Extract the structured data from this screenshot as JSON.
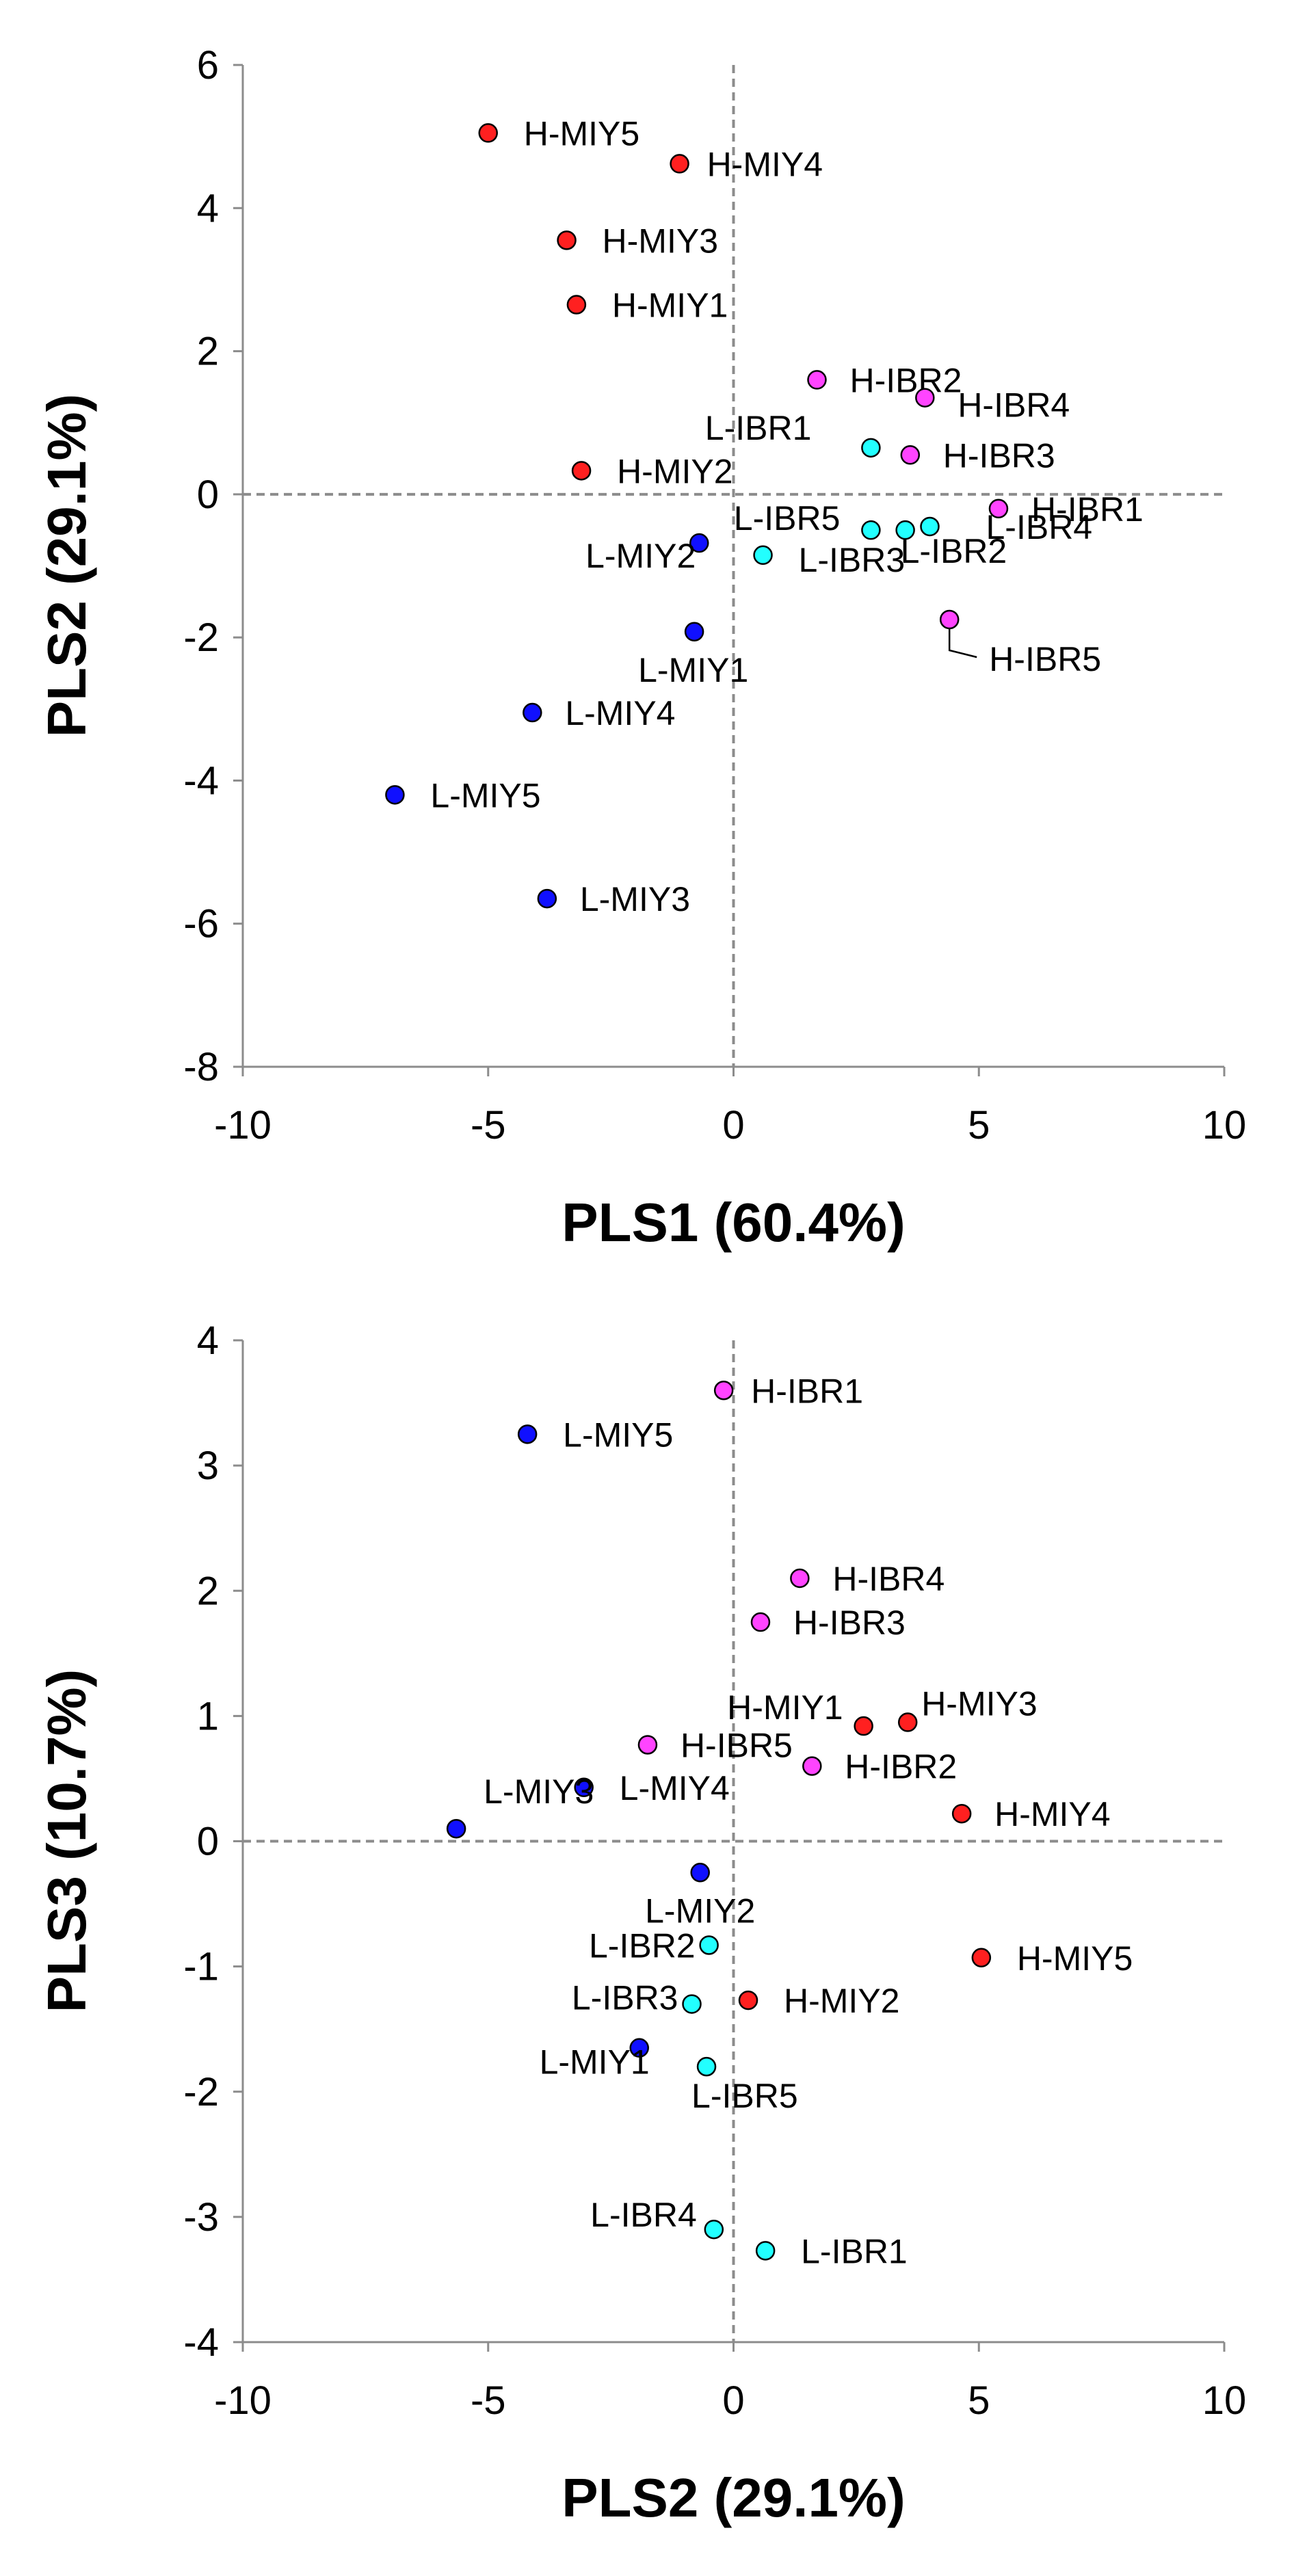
{
  "chart_data": [
    {
      "type": "scatter",
      "xlabel": "PLS1 (60.4%)",
      "ylabel": "PLS2 (29.1%)",
      "xlim": [
        -10,
        10
      ],
      "ylim": [
        -8,
        6
      ],
      "xticks": [
        "-10",
        "-5",
        "0",
        "5",
        "10"
      ],
      "yticks": [
        "-8",
        "-6",
        "-4",
        "-2",
        "0",
        "2",
        "4",
        "6"
      ],
      "grid": false,
      "legend": "none",
      "zero_lines": "dashed",
      "points": [
        {
          "label": "H-MIY5",
          "x": -5.0,
          "y": 5.05,
          "color": "#ff2020"
        },
        {
          "label": "H-MIY4",
          "x": -1.1,
          "y": 4.62,
          "color": "#ff2020"
        },
        {
          "label": "H-MIY3",
          "x": -3.4,
          "y": 3.55,
          "color": "#ff2020"
        },
        {
          "label": "H-MIY1",
          "x": -3.2,
          "y": 2.65,
          "color": "#ff2020"
        },
        {
          "label": "H-MIY2",
          "x": -3.1,
          "y": 0.33,
          "color": "#ff2020"
        },
        {
          "label": "H-IBR2",
          "x": 1.7,
          "y": 1.6,
          "color": "#ff44ff"
        },
        {
          "label": "H-IBR4",
          "x": 3.9,
          "y": 1.35,
          "color": "#ff44ff"
        },
        {
          "label": "H-IBR3",
          "x": 3.6,
          "y": 0.55,
          "color": "#ff44ff"
        },
        {
          "label": "H-IBR1",
          "x": 5.4,
          "y": -0.2,
          "color": "#ff44ff"
        },
        {
          "label": "H-IBR5",
          "x": 4.4,
          "y": -1.75,
          "color": "#ff44ff"
        },
        {
          "label": "L-IBR1",
          "x": 2.8,
          "y": 0.65,
          "color": "#22ffff"
        },
        {
          "label": "L-IBR5",
          "x": 2.8,
          "y": -0.5,
          "color": "#22ffff"
        },
        {
          "label": "L-IBR2",
          "x": 3.5,
          "y": -0.5,
          "color": "#22ffff"
        },
        {
          "label": "L-IBR4",
          "x": 4.0,
          "y": -0.45,
          "color": "#22ffff"
        },
        {
          "label": "L-IBR3",
          "x": 0.6,
          "y": -0.85,
          "color": "#22ffff"
        },
        {
          "label": "L-MIY2",
          "x": -0.7,
          "y": -0.68,
          "color": "#1010ff"
        },
        {
          "label": "L-MIY1",
          "x": -0.8,
          "y": -1.92,
          "color": "#1010ff"
        },
        {
          "label": "L-MIY4",
          "x": -4.1,
          "y": -3.05,
          "color": "#1010ff"
        },
        {
          "label": "L-MIY5",
          "x": -6.9,
          "y": -4.2,
          "color": "#1010ff"
        },
        {
          "label": "L-MIY3",
          "x": -3.8,
          "y": -5.65,
          "color": "#1010ff"
        }
      ]
    },
    {
      "type": "scatter",
      "xlabel": "PLS2 (29.1%)",
      "ylabel": "PLS3 (10.7%)",
      "xlim": [
        -10,
        10
      ],
      "ylim": [
        -4,
        4
      ],
      "xticks": [
        "-10",
        "-5",
        "0",
        "5",
        "10"
      ],
      "yticks": [
        "-4",
        "-3",
        "-2",
        "-1",
        "0",
        "1",
        "2",
        "3",
        "4"
      ],
      "grid": false,
      "legend": "none",
      "zero_lines": "dashed",
      "points": [
        {
          "label": "H-IBR1",
          "x": -0.2,
          "y": 3.6,
          "color": "#ff44ff"
        },
        {
          "label": "H-IBR4",
          "x": 1.35,
          "y": 2.1,
          "color": "#ff44ff"
        },
        {
          "label": "H-IBR3",
          "x": 0.55,
          "y": 1.75,
          "color": "#ff44ff"
        },
        {
          "label": "H-IBR5",
          "x": -1.75,
          "y": 0.77,
          "color": "#ff44ff"
        },
        {
          "label": "H-IBR2",
          "x": 1.6,
          "y": 0.6,
          "color": "#ff44ff"
        },
        {
          "label": "H-MIY1",
          "x": 2.65,
          "y": 0.92,
          "color": "#ff2020"
        },
        {
          "label": "H-MIY3",
          "x": 3.55,
          "y": 0.95,
          "color": "#ff2020"
        },
        {
          "label": "H-MIY4",
          "x": 4.65,
          "y": 0.22,
          "color": "#ff2020"
        },
        {
          "label": "H-MIY5",
          "x": 5.05,
          "y": -0.93,
          "color": "#ff2020"
        },
        {
          "label": "H-MIY2",
          "x": 0.3,
          "y": -1.27,
          "color": "#ff2020"
        },
        {
          "label": "L-MIY5",
          "x": -4.2,
          "y": 3.25,
          "color": "#1010ff"
        },
        {
          "label": "L-MIY4",
          "x": -3.05,
          "y": 0.43,
          "color": "#1010ff"
        },
        {
          "label": "L-MIY3",
          "x": -5.65,
          "y": 0.1,
          "color": "#1010ff"
        },
        {
          "label": "L-MIY2",
          "x": -0.68,
          "y": -0.25,
          "color": "#1010ff"
        },
        {
          "label": "L-MIY1",
          "x": -1.92,
          "y": -1.65,
          "color": "#1010ff"
        },
        {
          "label": "L-IBR2",
          "x": -0.5,
          "y": -0.83,
          "color": "#22ffff"
        },
        {
          "label": "L-IBR3",
          "x": -0.85,
          "y": -1.3,
          "color": "#22ffff"
        },
        {
          "label": "L-IBR5",
          "x": -0.55,
          "y": -1.8,
          "color": "#22ffff"
        },
        {
          "label": "L-IBR4",
          "x": -0.4,
          "y": -3.1,
          "color": "#22ffff"
        },
        {
          "label": "L-IBR1",
          "x": 0.65,
          "y": -3.27,
          "color": "#22ffff"
        }
      ]
    }
  ]
}
